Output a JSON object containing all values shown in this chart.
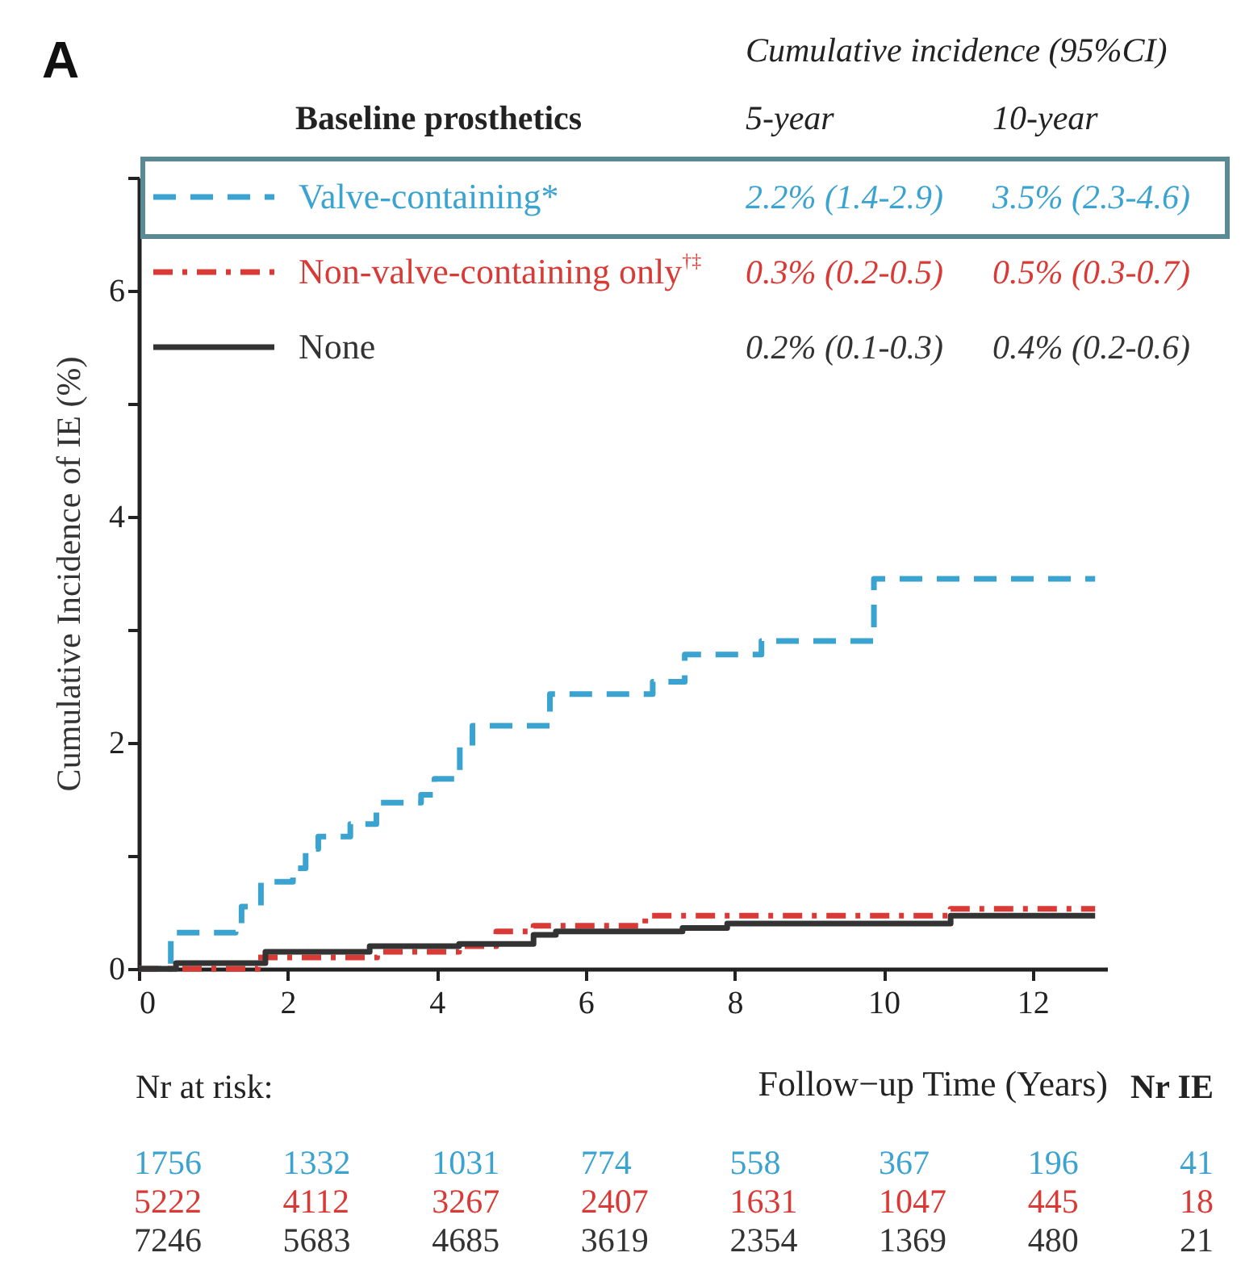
{
  "chart_data": {
    "type": "step",
    "title": "A",
    "legend_title": "Baseline prosthetics",
    "ylabel": "Cumulative Incidence of IE (%)",
    "xlabel": "Follow−up Time (Years)",
    "xlim": [
      0,
      13
    ],
    "xticks": [
      0,
      2,
      4,
      6,
      8,
      10,
      12
    ],
    "ylim": [
      0,
      7
    ],
    "yticks": [
      0,
      {
        "value": 1,
        "label": null
      },
      2,
      {
        "value": 3,
        "label": null
      },
      4,
      {
        "value": 5,
        "label": null
      },
      6,
      {
        "value": 7,
        "label": null
      }
    ],
    "legend": "top left",
    "series": [
      {
        "name": "Valve-containing*",
        "color": "#3ba3d0",
        "line_style": "dashed",
        "x": [
          0,
          0.43,
          1.3,
          1.38,
          1.64,
          2.07,
          2.24,
          2.41,
          2.84,
          3.19,
          3.79,
          3.97,
          4.31,
          4.48,
          5.52,
          6.9,
          7.33,
          8.36,
          9.87,
          12.84
        ],
        "values": [
          0,
          0.32,
          0.38,
          0.55,
          0.77,
          0.89,
          1.06,
          1.17,
          1.28,
          1.47,
          1.54,
          1.68,
          1.96,
          2.15,
          2.43,
          2.54,
          2.78,
          2.9,
          3.45,
          3.45
        ]
      },
      {
        "name": "Non-valve-containing only$^{†‡}$",
        "color": "#d93a35",
        "line_style": "dashdot",
        "x": [
          0,
          1.6,
          3.2,
          4.3,
          4.8,
          5.3,
          6.8,
          10.9,
          12.84
        ],
        "values": [
          0,
          0.1,
          0.15,
          0.2,
          0.33,
          0.38,
          0.47,
          0.53,
          0.53
        ]
      },
      {
        "name": "None",
        "color": "#333333",
        "line_style": "solid",
        "x": [
          0,
          0.5,
          1.7,
          3.1,
          4.3,
          5.3,
          5.6,
          7.3,
          7.9,
          10.9,
          12.84
        ],
        "values": [
          0,
          0.05,
          0.15,
          0.2,
          0.22,
          0.3,
          0.33,
          0.36,
          0.4,
          0.47,
          0.47
        ]
      }
    ],
    "annotations": [
      "Cumulative incidence (95%CI)",
      "5-year",
      "10-year",
      "2.2% (1.4-2.9)",
      "3.5% (2.3-4.6)",
      "0.3% (0.2-0.5)",
      "0.5% (0.3-0.7)",
      "0.2% (0.1-0.3)",
      "0.4% (0.2-0.6)",
      "Nr at risk:",
      "Nr IE",
      "1756",
      "1332",
      "1031",
      "774",
      "558",
      "367",
      "196",
      "41",
      "5222",
      "4112",
      "3267",
      "2407",
      "1631",
      "1047",
      "445",
      "18",
      "7246",
      "5683",
      "4685",
      "3619",
      "2354",
      "1369",
      "480",
      "21"
    ]
  }
}
